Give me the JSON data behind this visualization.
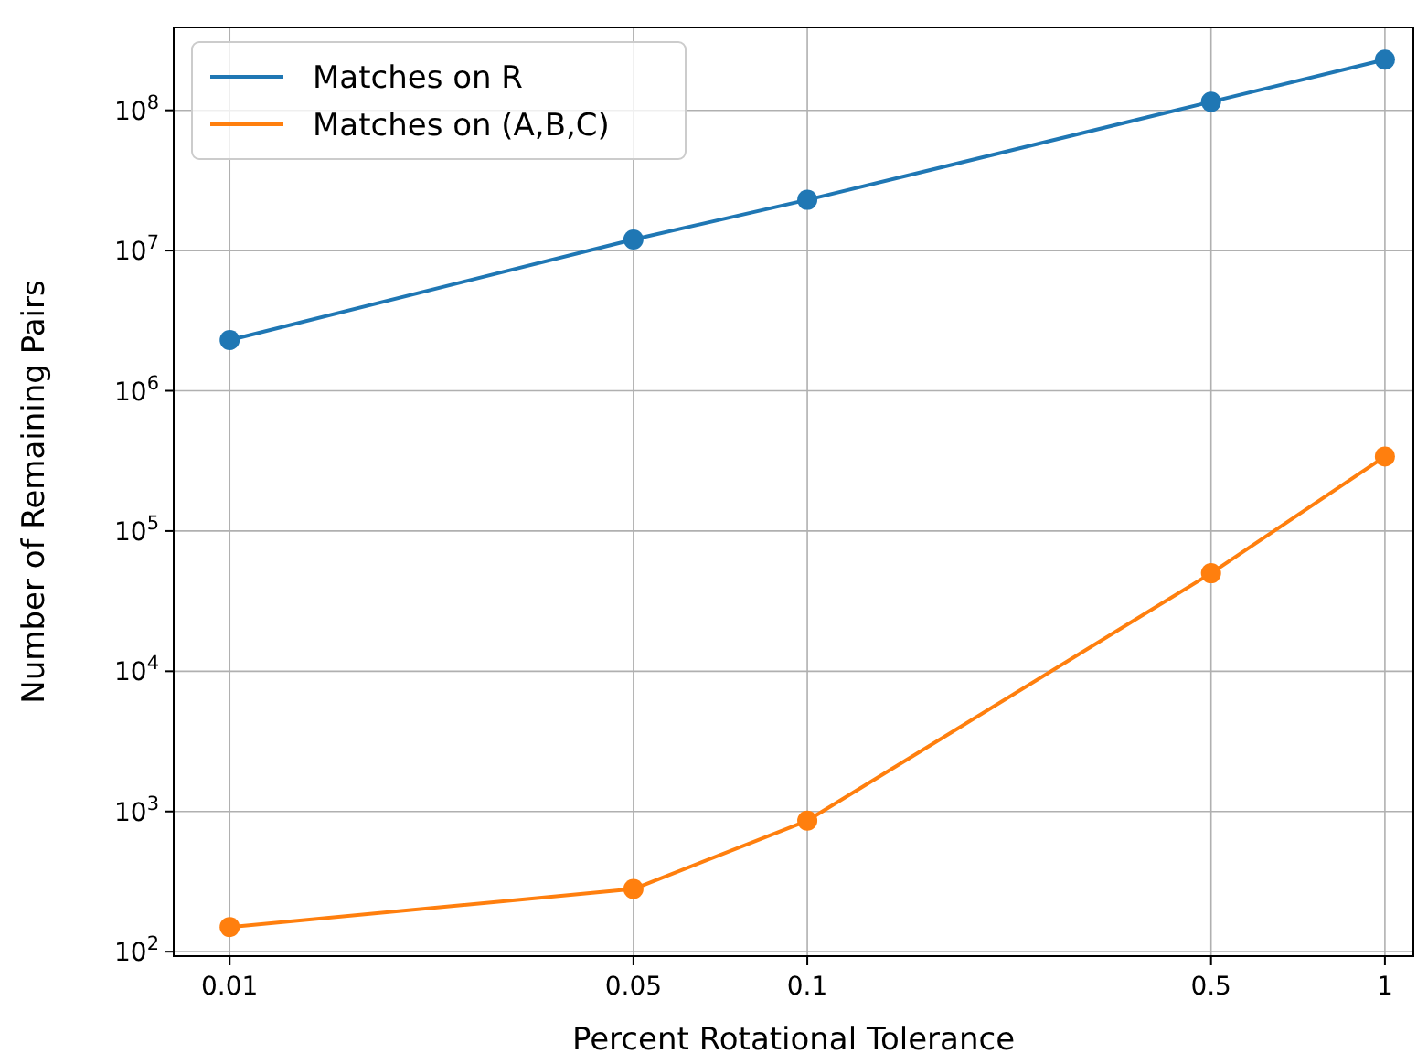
{
  "chart_data": {
    "type": "line",
    "xlabel": "Percent Rotational Tolerance",
    "ylabel": "Number of Remaining Pairs",
    "x": [
      0.01,
      0.05,
      0.1,
      0.5,
      1
    ],
    "series": [
      {
        "name": "Matches on R",
        "color": "#1f77b4",
        "values": [
          2300000,
          12000000,
          23000000,
          115000000,
          230000000
        ]
      },
      {
        "name": "Matches on (A,B,C)",
        "color": "#ff7f0e",
        "values": [
          150,
          280,
          860,
          50000,
          340000
        ]
      }
    ],
    "log": "xy",
    "xlim": [
      0.008,
      1.12
    ],
    "ylim": [
      93,
      390000000
    ],
    "xticks": [
      0.01,
      0.05,
      0.1,
      0.5,
      1
    ],
    "yticks": [
      {
        "value": 100,
        "label": "10$^{2}$"
      },
      {
        "value": 1000,
        "label": "10$^{3}$"
      },
      {
        "value": 10000,
        "label": "10$^{4}$"
      },
      {
        "value": 100000,
        "label": "10$^{5}$"
      },
      {
        "value": 1000000,
        "label": "10$^{6}$"
      },
      {
        "value": 10000000,
        "label": "10$^{7}$"
      },
      {
        "value": 100000000,
        "label": "10$^{8}$"
      }
    ],
    "grid": true,
    "legend": "top left",
    "marker": "circle",
    "line_style": "solid"
  }
}
